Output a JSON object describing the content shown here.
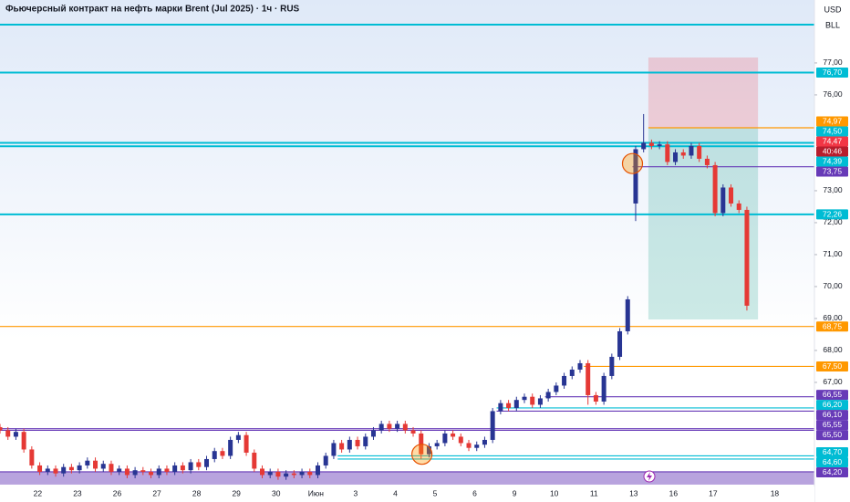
{
  "chart_data": {
    "type": "candlestick",
    "title": "Фьючерсный контракт на нефть марки Brent (Jul 2025) · 1ч · RUS",
    "currency": "USD",
    "unit": "BLL",
    "up_color": "#283593",
    "down_color": "#e53935",
    "xlim": [
      0,
      102.5
    ],
    "ylim": [
      63.77,
      78.97
    ],
    "xticks": [
      {
        "value": 4.75,
        "label": "22"
      },
      {
        "value": 9.75,
        "label": "23"
      },
      {
        "value": 14.75,
        "label": "26"
      },
      {
        "value": 19.75,
        "label": "27"
      },
      {
        "value": 24.75,
        "label": "28"
      },
      {
        "value": 29.75,
        "label": "29"
      },
      {
        "value": 34.75,
        "label": "30"
      },
      {
        "value": 39.75,
        "label": "Июн"
      },
      {
        "value": 44.75,
        "label": "3"
      },
      {
        "value": 49.75,
        "label": "4"
      },
      {
        "value": 54.75,
        "label": "5"
      },
      {
        "value": 59.75,
        "label": "6"
      },
      {
        "value": 64.75,
        "label": "9"
      },
      {
        "value": 69.75,
        "label": "10"
      },
      {
        "value": 74.75,
        "label": "11"
      },
      {
        "value": 79.75,
        "label": "13"
      },
      {
        "value": 84.75,
        "label": "16"
      },
      {
        "value": 89.75,
        "label": "17"
      },
      {
        "value": 97.5,
        "label": "18"
      }
    ],
    "yticks": [
      {
        "value": 77,
        "label": "77,00"
      },
      {
        "value": 76,
        "label": "76,00"
      },
      {
        "value": 73,
        "label": "73,00"
      },
      {
        "value": 72,
        "label": "72,00"
      },
      {
        "value": 71,
        "label": "71,00"
      },
      {
        "value": 70,
        "label": "70,00"
      },
      {
        "value": 69,
        "label": "69,00"
      },
      {
        "value": 68,
        "label": "68,00"
      },
      {
        "value": 67,
        "label": "67,00"
      }
    ],
    "open": [
      65.6,
      65.5,
      65.3,
      65.45,
      64.9,
      64.4,
      64.2,
      64.3,
      64.15,
      64.35,
      64.25,
      64.4,
      64.55,
      64.3,
      64.45,
      64.2,
      64.3,
      64.1,
      64.25,
      64.2,
      64.1,
      64.3,
      64.2,
      64.4,
      64.25,
      64.5,
      64.35,
      64.6,
      64.85,
      64.7,
      65.2,
      65.35,
      64.8,
      64.3,
      64.1,
      64.2,
      64.05,
      64.15,
      64.1,
      64.2,
      64.1,
      64.4,
      64.7,
      65.1,
      64.9,
      65.2,
      65.0,
      65.3,
      65.5,
      65.7,
      65.55,
      65.7,
      65.5,
      65.4,
      64.75,
      65.0,
      65.1,
      65.4,
      65.3,
      65.1,
      64.95,
      65.05,
      65.2,
      66.1,
      66.35,
      66.2,
      66.45,
      66.55,
      66.3,
      66.5,
      66.7,
      66.9,
      67.2,
      67.4,
      67.6,
      66.6,
      66.4,
      67.2,
      67.8,
      68.6,
      72.6,
      74.3,
      74.5,
      74.4,
      74.45,
      73.9,
      74.2,
      74.1,
      74.4,
      74.0,
      73.8,
      72.3,
      73.1,
      72.6,
      72.4
    ],
    "high": [
      65.7,
      65.6,
      65.55,
      65.55,
      65.0,
      64.5,
      64.4,
      64.4,
      64.45,
      64.45,
      64.5,
      64.65,
      64.65,
      64.55,
      64.55,
      64.4,
      64.4,
      64.35,
      64.35,
      64.3,
      64.4,
      64.4,
      64.5,
      64.5,
      64.6,
      64.6,
      64.7,
      64.95,
      64.95,
      65.3,
      65.45,
      65.45,
      64.9,
      64.4,
      64.3,
      64.3,
      64.25,
      64.25,
      64.3,
      64.3,
      64.5,
      64.8,
      65.2,
      65.2,
      65.3,
      65.3,
      65.4,
      65.6,
      65.8,
      65.8,
      65.8,
      65.8,
      65.6,
      65.5,
      65.1,
      65.2,
      65.5,
      65.5,
      65.4,
      65.2,
      65.15,
      65.3,
      66.2,
      66.45,
      66.45,
      66.55,
      66.65,
      66.65,
      66.6,
      66.8,
      67.0,
      67.3,
      67.5,
      67.7,
      67.7,
      66.7,
      67.3,
      67.9,
      68.7,
      69.7,
      74.4,
      75.4,
      74.6,
      74.55,
      74.55,
      74.3,
      74.3,
      74.5,
      74.5,
      74.1,
      73.9,
      73.2,
      73.2,
      72.7,
      72.5
    ],
    "low": [
      65.4,
      65.2,
      65.2,
      64.8,
      64.3,
      64.1,
      64.1,
      64.05,
      64.05,
      64.15,
      64.15,
      64.3,
      64.2,
      64.2,
      64.1,
      64.1,
      64.0,
      64.0,
      64.1,
      64.0,
      64.0,
      64.1,
      64.1,
      64.15,
      64.15,
      64.25,
      64.25,
      64.5,
      64.6,
      64.6,
      65.1,
      64.7,
      64.2,
      64.0,
      64.0,
      63.95,
      63.95,
      64.0,
      64.0,
      64.0,
      64.0,
      64.3,
      64.6,
      64.8,
      64.8,
      64.9,
      64.9,
      65.2,
      65.4,
      65.45,
      65.45,
      65.4,
      65.3,
      64.6,
      64.65,
      64.9,
      65.0,
      65.2,
      65.0,
      64.85,
      64.85,
      64.95,
      65.1,
      66.0,
      66.1,
      66.1,
      66.35,
      66.2,
      66.2,
      66.4,
      66.6,
      66.8,
      67.1,
      67.3,
      66.3,
      66.3,
      66.3,
      67.1,
      67.7,
      68.5,
      72.05,
      74.2,
      74.3,
      74.3,
      73.8,
      73.8,
      74.0,
      74.0,
      73.9,
      73.7,
      72.2,
      72.2,
      72.5,
      72.3,
      69.25
    ],
    "close": [
      65.5,
      65.3,
      65.45,
      64.9,
      64.4,
      64.2,
      64.3,
      64.15,
      64.35,
      64.25,
      64.4,
      64.55,
      64.3,
      64.45,
      64.2,
      64.3,
      64.1,
      64.25,
      64.2,
      64.1,
      64.3,
      64.2,
      64.4,
      64.25,
      64.5,
      64.35,
      64.6,
      64.85,
      64.7,
      65.2,
      65.35,
      64.8,
      64.3,
      64.1,
      64.2,
      64.05,
      64.15,
      64.1,
      64.2,
      64.1,
      64.4,
      64.7,
      65.1,
      64.9,
      65.2,
      65.0,
      65.3,
      65.5,
      65.7,
      65.55,
      65.7,
      65.5,
      65.4,
      64.75,
      65.0,
      65.1,
      65.4,
      65.3,
      65.1,
      64.95,
      65.05,
      65.2,
      66.1,
      66.35,
      66.2,
      66.45,
      66.55,
      66.3,
      66.5,
      66.7,
      66.9,
      67.2,
      67.4,
      67.6,
      66.6,
      66.4,
      67.2,
      67.8,
      68.6,
      69.6,
      74.3,
      74.5,
      74.4,
      74.45,
      73.9,
      74.2,
      74.1,
      74.4,
      74.0,
      73.8,
      72.3,
      73.1,
      72.6,
      72.4,
      69.4
    ],
    "levels": [
      {
        "value": 78.2,
        "color": "#00bcd4",
        "x": 0
      },
      {
        "value": 76.7,
        "label": "76,70",
        "color": "#00bcd4",
        "x": 0
      },
      {
        "value": 74.97,
        "label": "74,97",
        "color": "#ff9800",
        "x": 81.6
      },
      {
        "value": 74.5,
        "label": "74,50",
        "color": "#00bcd4",
        "x": 0
      },
      {
        "value": 74.39,
        "label": "74,39",
        "color": "#00bcd4",
        "x": 0
      },
      {
        "value": 73.75,
        "label": "73,75",
        "color": "#673ab7",
        "x": 79.6
      },
      {
        "value": 72.26,
        "label": "72,26",
        "color": "#00bcd4",
        "x": 0
      },
      {
        "value": 68.75,
        "label": "68,75",
        "color": "#ff9800",
        "x": 0
      },
      {
        "value": 67.5,
        "label": "67,50",
        "color": "#ff9800",
        "x": 73.5
      },
      {
        "value": 66.55,
        "label": "66,55",
        "color": "#673ab7",
        "x": 68.6
      },
      {
        "value": 66.2,
        "label": "66,20",
        "color": "#00bcd4",
        "x": 62.5
      },
      {
        "value": 66.1,
        "label": "66,10",
        "color": "#673ab7",
        "x": 62.5
      },
      {
        "value": 65.55,
        "label": "65,55",
        "color": "#673ab7",
        "x": 0
      },
      {
        "value": 65.5,
        "label": "65,50",
        "color": "#673ab7",
        "x": 0
      },
      {
        "value": 64.7,
        "label": "64,70",
        "color": "#00bcd4",
        "x": 42.5
      },
      {
        "value": 64.6,
        "label": "64,60",
        "color": "#00bcd4",
        "x": 42.5
      },
      {
        "value": 64.2,
        "label": "64,20",
        "color": "#673ab7",
        "x": 0
      }
    ],
    "current": {
      "value": 74.47,
      "label": "74,47",
      "countdown": "40:46",
      "color": "#f23645"
    },
    "position": {
      "x": [
        81.6,
        95.4
      ],
      "stop": 77.17,
      "entry": 74.97,
      "target": 68.97
    },
    "markers": [
      {
        "x": 79.6,
        "y": 73.85
      },
      {
        "x": 53.1,
        "y": 64.75
      }
    ],
    "zone": {
      "low": 63.8,
      "high": 64.2,
      "color": "#7e57c2"
    }
  }
}
